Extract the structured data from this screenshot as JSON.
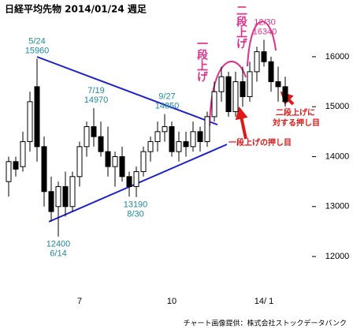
{
  "chart_data": {
    "type": "candlestick",
    "title": "日経平均先物  2014/01/24  週足",
    "source": "チャート画像提供：株式会社ストックデータバンク",
    "categories": [
      null,
      null,
      null,
      null,
      null,
      null,
      null,
      null,
      null,
      null,
      "7",
      null,
      null,
      null,
      null,
      null,
      null,
      null,
      null,
      null,
      null,
      null,
      null,
      "10",
      null,
      null,
      null,
      null,
      null,
      null,
      null,
      null,
      null,
      null,
      null,
      null,
      "14/ 1",
      null,
      null,
      null
    ],
    "open": [
      13500,
      13900,
      13800,
      14300,
      15400,
      14200,
      13300,
      13000,
      13400,
      13000,
      13600,
      14200,
      14600,
      14400,
      14100,
      13800,
      14000,
      13600,
      13400,
      13700,
      14100,
      14300,
      14500,
      14600,
      14100,
      14300,
      14200,
      14500,
      14300,
      14800,
      15300,
      15600,
      14900,
      15500,
      15200,
      15700,
      16100,
      15900,
      15500,
      15400
    ],
    "high": [
      14000,
      14000,
      14500,
      15300,
      15960,
      14400,
      13600,
      13500,
      13700,
      13700,
      14300,
      14700,
      14970,
      14700,
      14600,
      14100,
      14200,
      13700,
      13800,
      14200,
      14400,
      14700,
      14850,
      14700,
      14500,
      14500,
      14700,
      14600,
      14900,
      15500,
      15800,
      15700,
      15700,
      15800,
      15900,
      16200,
      16340,
      16000,
      15800,
      15600
    ],
    "low": [
      13200,
      13600,
      13700,
      14100,
      13900,
      13000,
      12700,
      12400,
      12800,
      12900,
      13400,
      14000,
      14200,
      14000,
      13600,
      13400,
      13500,
      13200,
      13190,
      13600,
      13900,
      14100,
      14300,
      14000,
      13900,
      14000,
      14100,
      14100,
      14200,
      14700,
      15100,
      14800,
      14800,
      15000,
      15100,
      15500,
      15800,
      15300,
      15100,
      15000
    ],
    "close": [
      13900,
      13750,
      14300,
      15100,
      14200,
      13300,
      12900,
      13400,
      13000,
      13600,
      14200,
      14600,
      14400,
      14100,
      13800,
      14000,
      13600,
      13400,
      13700,
      14100,
      14300,
      14500,
      14600,
      14100,
      14300,
      14200,
      14500,
      14300,
      14800,
      15300,
      15600,
      14900,
      15500,
      15200,
      15700,
      16100,
      15900,
      15500,
      15400,
      15100
    ],
    "up_color": "#ffffff",
    "down_color": "#000000",
    "ylim": [
      11290,
      16820
    ],
    "yticks": [
      12000,
      13000,
      14000,
      15000,
      16000
    ],
    "peaks": [
      {
        "date": "5/24",
        "value": 15960
      },
      {
        "date": "6/14",
        "value": 12400
      },
      {
        "date": "7/19",
        "value": 14970
      },
      {
        "date": "8/30",
        "value": 13190
      },
      {
        "date": "9/27",
        "value": 14850
      },
      {
        "date": "12/30",
        "value": 16340
      }
    ],
    "annotations": {
      "first_rise": "一段上げ",
      "second_rise": "二段上げ",
      "first_dip": "一段上げの押し目",
      "second_dip": [
        "二段上げに",
        "対する押し目"
      ]
    }
  }
}
